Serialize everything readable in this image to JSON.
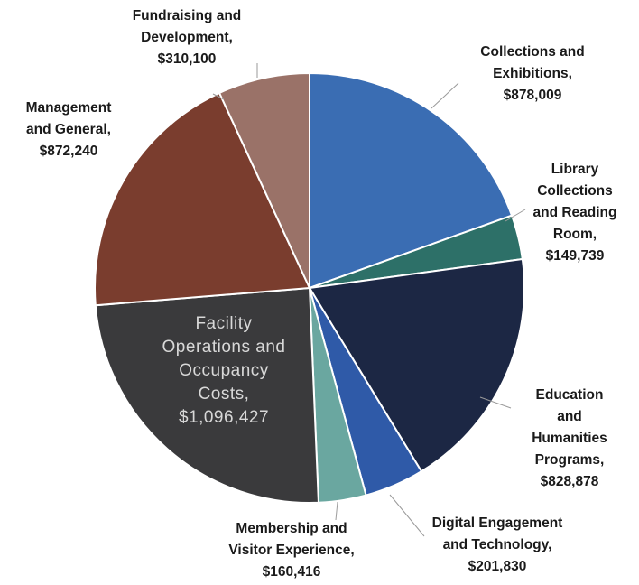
{
  "chart_data": {
    "type": "pie",
    "title": "",
    "slices": [
      {
        "lines": [
          "Collections and",
          "Exhibitions,",
          "$878,009"
        ],
        "name": "Collections and Exhibitions",
        "value": 878009,
        "color": "#3a6db3"
      },
      {
        "lines": [
          "Library",
          "Collections",
          "and Reading",
          "Room,",
          "$149,739"
        ],
        "name": "Library Collections and Reading Room",
        "value": 149739,
        "color": "#2d7068"
      },
      {
        "lines": [
          "Education",
          "and",
          "Humanities",
          "Programs,",
          "$828,878"
        ],
        "name": "Education and Humanities Programs",
        "value": 828878,
        "color": "#1c2744"
      },
      {
        "lines": [
          "Digital Engagement",
          "and Technology,",
          "$201,830"
        ],
        "name": "Digital Engagement and Technology",
        "value": 201830,
        "color": "#2f5aa8"
      },
      {
        "lines": [
          "Membership and",
          "Visitor Experience,",
          "$160,416"
        ],
        "name": "Membership and Visitor Experience",
        "value": 160416,
        "color": "#6aa7a0"
      },
      {
        "lines": [
          "Facility",
          "Operations and",
          "Occupancy",
          "Costs,",
          "$1,096,427"
        ],
        "name": "Facility Operations and Occupancy Costs",
        "value": 1096427,
        "color": "#3a3a3c"
      },
      {
        "lines": [
          "Management",
          "and General,",
          "$872,240"
        ],
        "name": "Management and General",
        "value": 872240,
        "color": "#7a3d2e"
      },
      {
        "lines": [
          "Fundraising and",
          "Development,",
          "$310,100"
        ],
        "name": "Fundraising and Development",
        "value": 310100,
        "color": "#9a7268"
      }
    ],
    "start_angle_deg": 0,
    "direction": "clockwise",
    "legend": "none"
  }
}
